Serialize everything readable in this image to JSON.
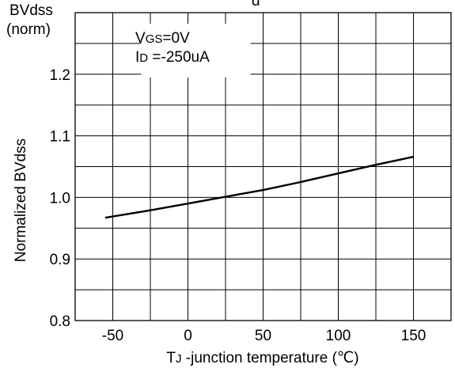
{
  "chart_data": {
    "type": "line",
    "title_fragment": "d",
    "corner_label_line1": "BVdss",
    "corner_label_line2": "(norm)",
    "ylabel": "Normalized BVdss",
    "xlabel": {
      "main": "T",
      "sub": "J",
      "rest": " -junction temperature (℃)"
    },
    "annotation": {
      "line1_main": "V",
      "line1_sub": "GS",
      "line1_rest": "=0V",
      "line2_main": "I",
      "line2_sub": "D",
      "line2_rest": " =-250uA"
    },
    "xlim": [
      -75,
      175
    ],
    "ylim": [
      0.8,
      1.3
    ],
    "x_ticks": [
      -50,
      0,
      50,
      100,
      150
    ],
    "x_tick_labels": [
      "-50",
      "0",
      "50",
      "100",
      "150"
    ],
    "y_ticks": [
      0.8,
      0.9,
      1.0,
      1.1,
      1.2
    ],
    "y_tick_labels": [
      "0.8",
      "0.9",
      "1.0",
      "1.1",
      "1.2"
    ],
    "grid": true,
    "series": [
      {
        "x": [
          -55,
          -25,
          0,
          25,
          50,
          75,
          100,
          125,
          150
        ],
        "y": [
          0.967,
          0.979,
          0.99,
          1.001,
          1.012,
          1.025,
          1.039,
          1.053,
          1.066
        ],
        "color": "#000000"
      }
    ]
  }
}
